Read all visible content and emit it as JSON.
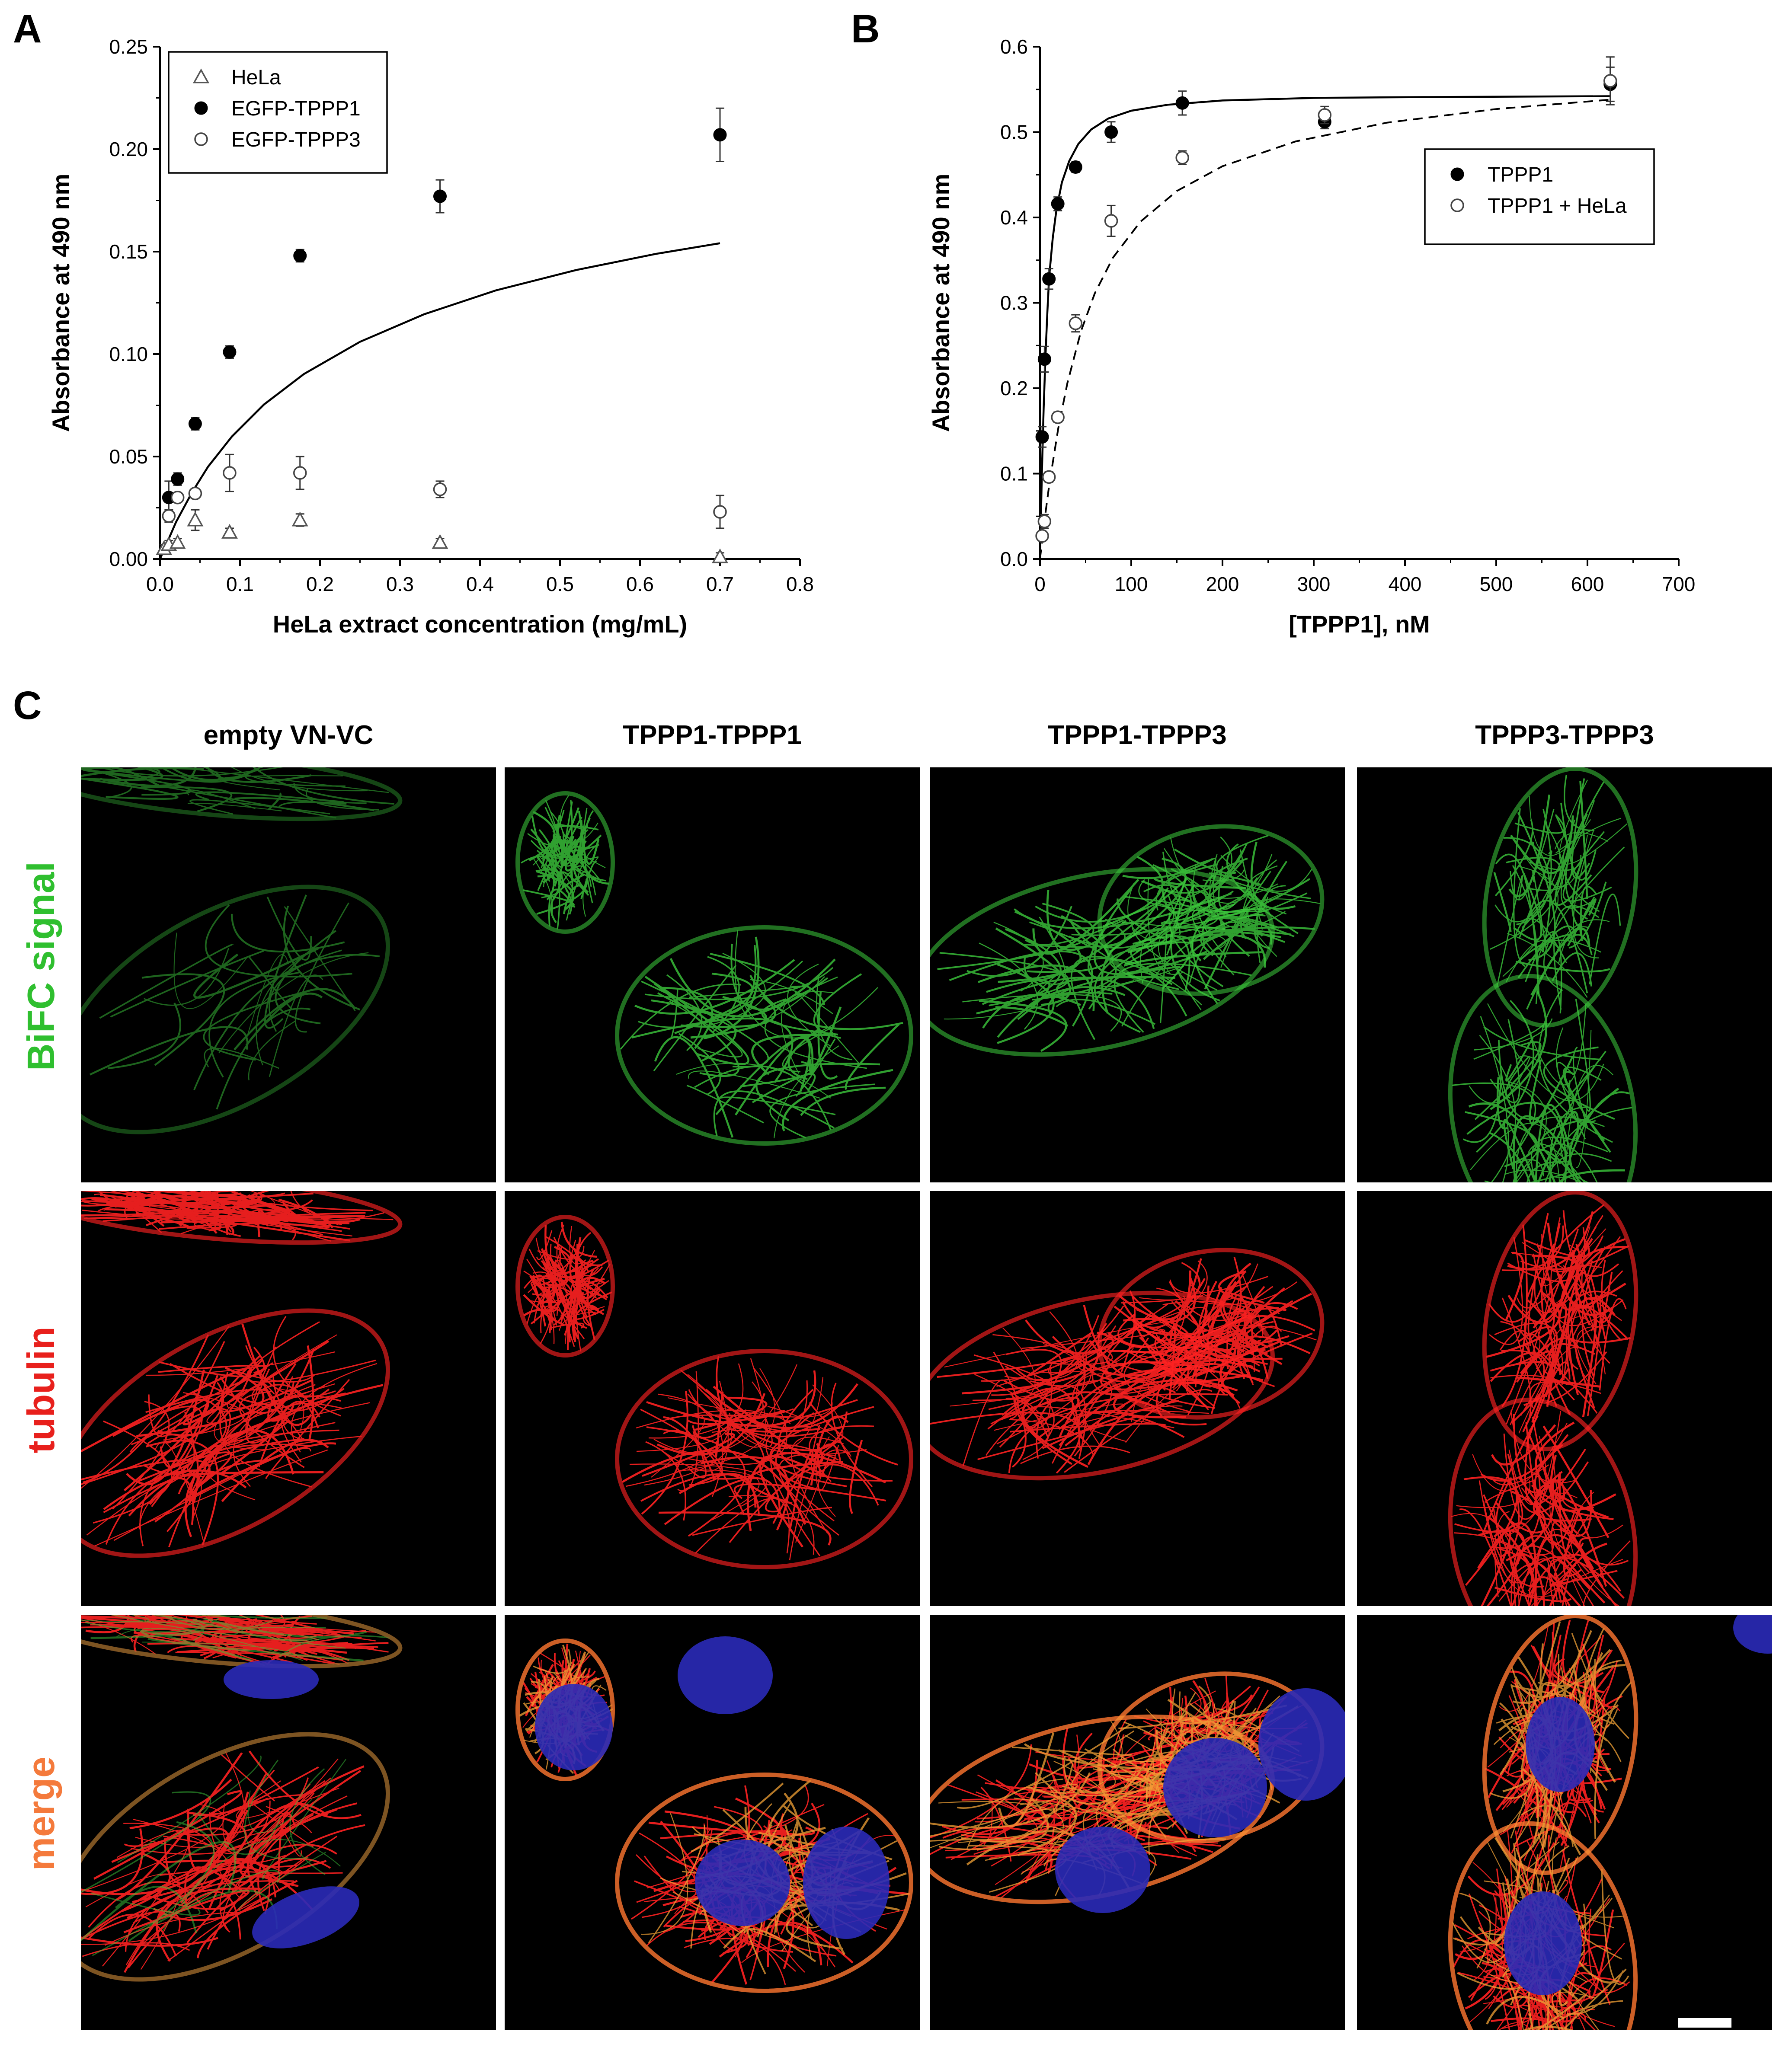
{
  "panels": {
    "a": {
      "letter": "A"
    },
    "b": {
      "letter": "B"
    },
    "c": {
      "letter": "C",
      "columns": [
        "empty VN-VC",
        "TPPP1-TPPP1",
        "TPPP1-TPPP3",
        "TPPP3-TPPP3"
      ],
      "rows": [
        {
          "label": "BiFC signal",
          "color": "#2fbf2f"
        },
        {
          "label": "tubulin",
          "color": "#e8201c"
        },
        {
          "label": "merge",
          "color": "#f47a3c"
        }
      ],
      "channel_colors": {
        "green": "#3cc83c",
        "red": "#ff2222",
        "blue": "#2a2ab8",
        "yellow": "#f2a236"
      }
    }
  },
  "chart_data": [
    {
      "type": "scatter",
      "panel": "A",
      "xlabel": "HeLa extract concentration (mg/mL)",
      "ylabel": "Absorbance at 490 nm",
      "xlim": [
        0,
        0.8
      ],
      "ylim": [
        0,
        0.25
      ],
      "xticks": [
        "0.0",
        "0.1",
        "0.2",
        "0.3",
        "0.4",
        "0.5",
        "0.6",
        "0.7",
        "0.8"
      ],
      "yticks": [
        "0.00",
        "0.05",
        "0.10",
        "0.15",
        "0.20",
        "0.25"
      ],
      "legend_position": "top-left",
      "series": [
        {
          "name": "HeLa",
          "marker": "open-triangle",
          "x": [
            0.005,
            0.011,
            0.022,
            0.044,
            0.087,
            0.175,
            0.35,
            0.7
          ],
          "y": [
            0.005,
            0.007,
            0.008,
            0.019,
            0.013,
            0.019,
            0.008,
            0.001
          ],
          "err": [
            0.002,
            0.002,
            0.002,
            0.005,
            0.002,
            0.003,
            0.002,
            0.002
          ]
        },
        {
          "name": "EGFP-TPPP1",
          "marker": "filled-circle",
          "x": [
            0.011,
            0.022,
            0.044,
            0.087,
            0.175,
            0.35,
            0.7
          ],
          "y": [
            0.03,
            0.039,
            0.066,
            0.101,
            0.148,
            0.177,
            0.207
          ],
          "err": [
            0.008,
            0.003,
            0.003,
            0.003,
            0.003,
            0.008,
            0.013
          ],
          "fit": {
            "style": "solid",
            "x": [
              0.0,
              0.01,
              0.02,
              0.04,
              0.06,
              0.09,
              0.13,
              0.18,
              0.25,
              0.33,
              0.42,
              0.52,
              0.62,
              0.7
            ],
            "y": [
              0.0,
              0.009,
              0.018,
              0.0325,
              0.045,
              0.0598,
              0.0754,
              0.0903,
              0.106,
              0.1194,
              0.1311,
              0.141,
              0.1489,
              0.1541
            ]
          }
        },
        {
          "name": "EGFP-TPPP3",
          "marker": "open-circle",
          "x": [
            0.011,
            0.022,
            0.044,
            0.087,
            0.175,
            0.35,
            0.7
          ],
          "y": [
            0.021,
            0.03,
            0.032,
            0.042,
            0.042,
            0.034,
            0.023
          ],
          "err": [
            0.003,
            0.002,
            0.002,
            0.009,
            0.008,
            0.004,
            0.008
          ]
        }
      ]
    },
    {
      "type": "scatter",
      "panel": "B",
      "xlabel": "[TPPP1], nM",
      "ylabel": "Absorbance at 490 nm",
      "xlim": [
        0,
        700
      ],
      "ylim": [
        0,
        0.6
      ],
      "xticks": [
        "0",
        "100",
        "200",
        "300",
        "400",
        "500",
        "600",
        "700"
      ],
      "yticks": [
        "0.0",
        "0.1",
        "0.2",
        "0.3",
        "0.4",
        "0.5",
        "0.6"
      ],
      "legend_position": "middle-right",
      "series": [
        {
          "name": "TPPP1",
          "marker": "filled-circle",
          "x": [
            2.4,
            4.9,
            9.8,
            19.5,
            39,
            78,
            156,
            312,
            625
          ],
          "y": [
            0.143,
            0.234,
            0.328,
            0.416,
            0.459,
            0.5,
            0.534,
            0.512,
            0.556
          ],
          "err": [
            0.012,
            0.015,
            0.012,
            0.008,
            0.006,
            0.012,
            0.014,
            0.008,
            0.02
          ],
          "fit": {
            "style": "solid",
            "x": [
              0,
              2,
              4,
              6,
              8,
              10,
              14,
              18,
              24,
              32,
              42,
              56,
              75,
              100,
              140,
              200,
              300,
              420,
              625
            ],
            "y": [
              0,
              0.098,
              0.176,
              0.238,
              0.288,
              0.33,
              0.376,
              0.409,
              0.441,
              0.466,
              0.486,
              0.503,
              0.516,
              0.525,
              0.532,
              0.537,
              0.54,
              0.541,
              0.542
            ]
          }
        },
        {
          "name": "TPPP1 + HeLa",
          "marker": "open-circle",
          "x": [
            2.4,
            4.9,
            9.8,
            19.5,
            39,
            78,
            156,
            312,
            625
          ],
          "y": [
            0.027,
            0.044,
            0.096,
            0.166,
            0.276,
            0.396,
            0.47,
            0.52,
            0.56
          ],
          "err": [
            0.005,
            0.008,
            0.006,
            0.006,
            0.01,
            0.018,
            0.008,
            0.01,
            0.028
          ],
          "fit": {
            "style": "dashed",
            "x": [
              0,
              5,
              10,
              20,
              30,
              45,
              60,
              80,
              110,
              150,
              200,
              280,
              380,
              500,
              625
            ],
            "y": [
              0,
              0.046,
              0.086,
              0.153,
              0.206,
              0.267,
              0.311,
              0.353,
              0.395,
              0.431,
              0.46,
              0.489,
              0.511,
              0.527,
              0.538
            ]
          }
        }
      ]
    }
  ]
}
